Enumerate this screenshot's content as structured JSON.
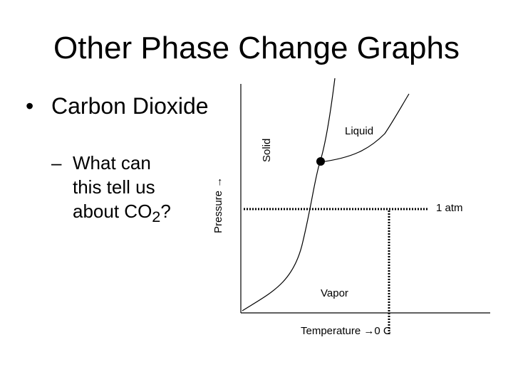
{
  "slide": {
    "title": "Other Phase Change Graphs",
    "bullet": "Carbon Dioxide",
    "bullet_marker": "•",
    "sub_marker": "–",
    "sub_line1": "What can",
    "sub_line2": "this tell us",
    "sub_line3_pre": "about CO",
    "sub_line3_sub": "2",
    "sub_line3_post": "?"
  },
  "diagram": {
    "axis_y_label": "Pressure →",
    "axis_x_label": "Temperature →0 C",
    "region_solid": "Solid",
    "region_liquid": "Liquid",
    "region_vapor": "Vapor",
    "reference_line_label": "1 atm"
  }
}
